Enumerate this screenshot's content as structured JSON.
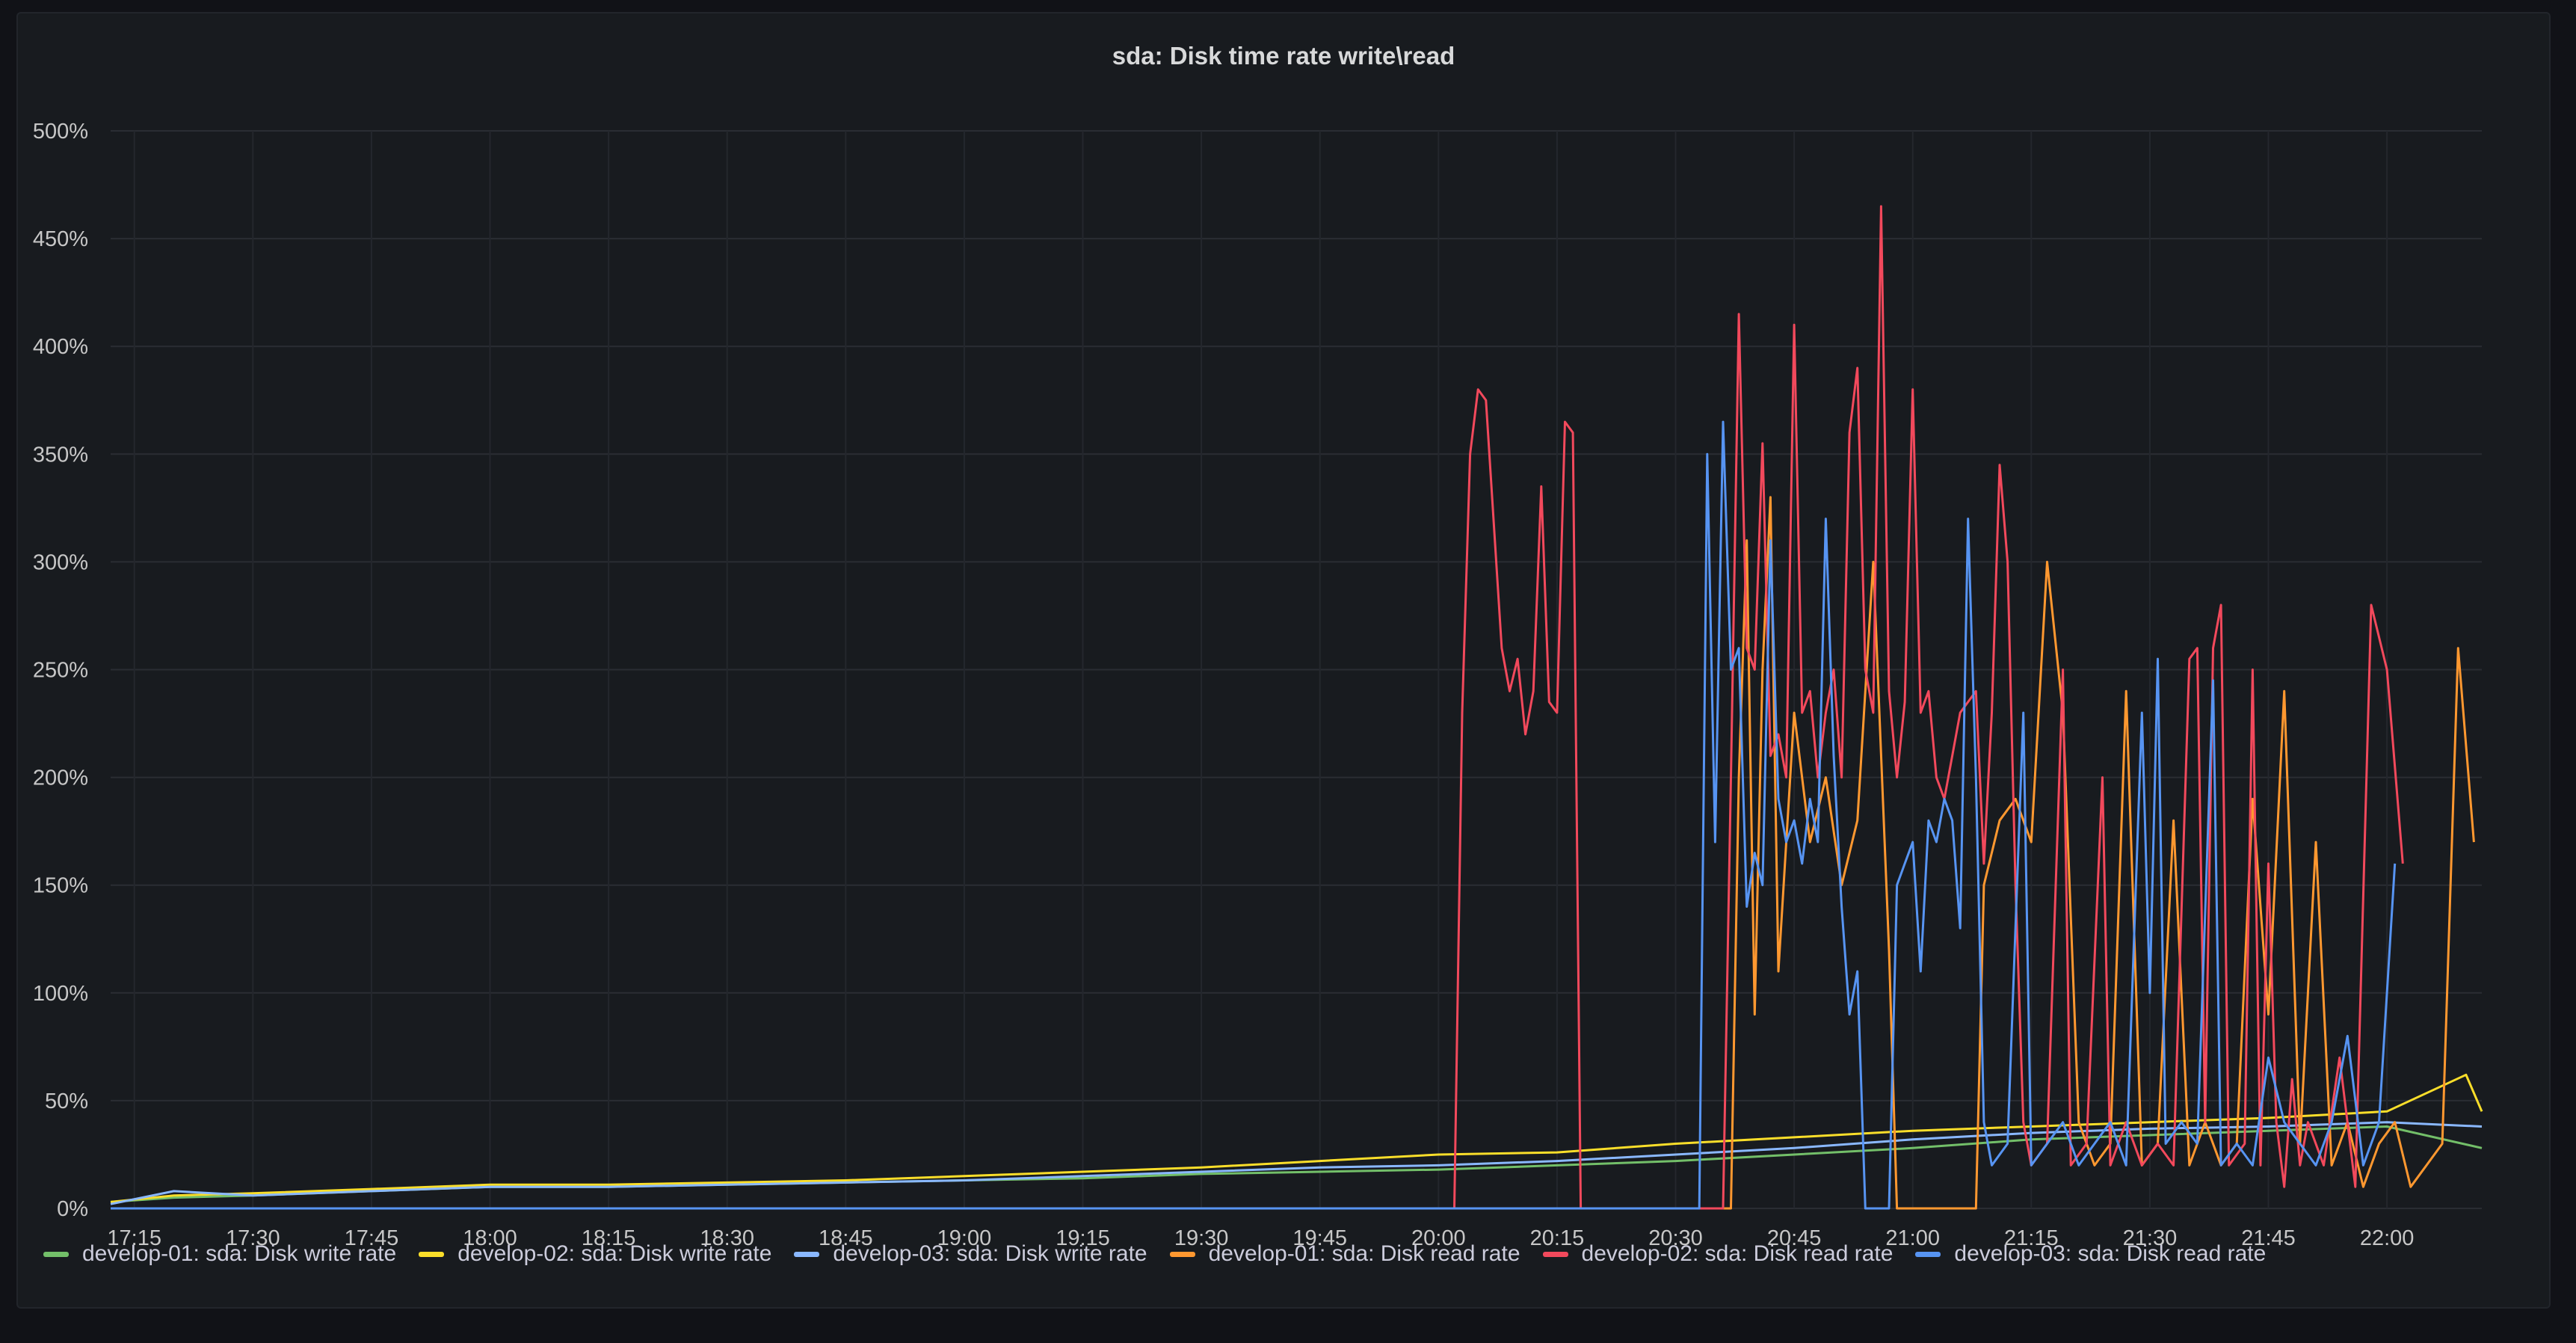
{
  "panel": {
    "title": "sda: Disk time rate write\\read"
  },
  "chart_data": {
    "type": "line",
    "title": "sda: Disk time rate write\\read",
    "x_tick_labels": [
      "17:15",
      "17:30",
      "17:45",
      "18:00",
      "18:15",
      "18:30",
      "18:45",
      "19:00",
      "19:15",
      "19:30",
      "19:45",
      "20:00",
      "20:15",
      "20:30",
      "20:45",
      "21:00",
      "21:15",
      "21:30",
      "21:45",
      "22:00"
    ],
    "x_range": [
      "17:12",
      "22:12"
    ],
    "y_tick_labels": [
      "0%",
      "50%",
      "100%",
      "150%",
      "200%",
      "250%",
      "300%",
      "350%",
      "400%",
      "450%",
      "500%"
    ],
    "ylim": [
      0,
      500
    ],
    "y_unit": "%",
    "grid": true,
    "legend_position": "bottom",
    "series": [
      {
        "name": "develop-01: sda: Disk write rate",
        "color": "#73bf69",
        "points": [
          [
            "17:12",
            3
          ],
          [
            "17:20",
            5
          ],
          [
            "17:30",
            6
          ],
          [
            "17:45",
            8
          ],
          [
            "18:00",
            10
          ],
          [
            "18:15",
            10
          ],
          [
            "18:30",
            11
          ],
          [
            "18:45",
            12
          ],
          [
            "19:00",
            13
          ],
          [
            "19:15",
            14
          ],
          [
            "19:30",
            16
          ],
          [
            "19:45",
            17
          ],
          [
            "20:00",
            18
          ],
          [
            "20:15",
            20
          ],
          [
            "20:30",
            22
          ],
          [
            "20:45",
            25
          ],
          [
            "21:00",
            28
          ],
          [
            "21:15",
            32
          ],
          [
            "21:30",
            34
          ],
          [
            "21:45",
            36
          ],
          [
            "22:00",
            38
          ],
          [
            "22:12",
            28
          ]
        ]
      },
      {
        "name": "develop-02: sda: Disk write rate",
        "color": "#fade2a",
        "points": [
          [
            "17:12",
            3
          ],
          [
            "17:20",
            6
          ],
          [
            "17:30",
            7
          ],
          [
            "17:45",
            9
          ],
          [
            "18:00",
            11
          ],
          [
            "18:15",
            11
          ],
          [
            "18:30",
            12
          ],
          [
            "18:45",
            13
          ],
          [
            "19:00",
            15
          ],
          [
            "19:15",
            17
          ],
          [
            "19:30",
            19
          ],
          [
            "19:45",
            22
          ],
          [
            "20:00",
            25
          ],
          [
            "20:15",
            26
          ],
          [
            "20:30",
            30
          ],
          [
            "20:45",
            33
          ],
          [
            "21:00",
            36
          ],
          [
            "21:15",
            38
          ],
          [
            "21:30",
            40
          ],
          [
            "21:45",
            42
          ],
          [
            "22:00",
            45
          ],
          [
            "22:10",
            62
          ],
          [
            "22:12",
            45
          ]
        ]
      },
      {
        "name": "develop-03: sda: Disk write rate",
        "color": "#8ab8ff",
        "points": [
          [
            "17:12",
            2
          ],
          [
            "17:20",
            8
          ],
          [
            "17:30",
            6
          ],
          [
            "17:45",
            8
          ],
          [
            "18:00",
            10
          ],
          [
            "18:15",
            10
          ],
          [
            "18:30",
            11
          ],
          [
            "18:45",
            12
          ],
          [
            "19:00",
            13
          ],
          [
            "19:15",
            15
          ],
          [
            "19:30",
            17
          ],
          [
            "19:45",
            19
          ],
          [
            "20:00",
            20
          ],
          [
            "20:15",
            22
          ],
          [
            "20:30",
            25
          ],
          [
            "20:45",
            28
          ],
          [
            "21:00",
            32
          ],
          [
            "21:15",
            35
          ],
          [
            "21:30",
            37
          ],
          [
            "21:45",
            38
          ],
          [
            "22:00",
            40
          ],
          [
            "22:12",
            38
          ]
        ]
      },
      {
        "name": "develop-01: sda: Disk read rate",
        "color": "#ff9830",
        "points": [
          [
            "17:12",
            0
          ],
          [
            "20:37",
            0
          ],
          [
            "20:38",
            200
          ],
          [
            "20:39",
            310
          ],
          [
            "20:40",
            90
          ],
          [
            "20:41",
            250
          ],
          [
            "20:42",
            330
          ],
          [
            "20:43",
            110
          ],
          [
            "20:45",
            230
          ],
          [
            "20:47",
            170
          ],
          [
            "20:49",
            200
          ],
          [
            "20:51",
            150
          ],
          [
            "20:53",
            180
          ],
          [
            "20:55",
            300
          ],
          [
            "20:57",
            120
          ],
          [
            "20:58",
            0
          ],
          [
            "21:08",
            0
          ],
          [
            "21:09",
            150
          ],
          [
            "21:11",
            180
          ],
          [
            "21:13",
            190
          ],
          [
            "21:15",
            170
          ],
          [
            "21:17",
            300
          ],
          [
            "21:19",
            230
          ],
          [
            "21:21",
            40
          ],
          [
            "21:23",
            20
          ],
          [
            "21:25",
            30
          ],
          [
            "21:27",
            240
          ],
          [
            "21:29",
            20
          ],
          [
            "21:31",
            30
          ],
          [
            "21:33",
            180
          ],
          [
            "21:35",
            20
          ],
          [
            "21:37",
            40
          ],
          [
            "21:39",
            20
          ],
          [
            "21:41",
            30
          ],
          [
            "21:43",
            190
          ],
          [
            "21:45",
            90
          ],
          [
            "21:47",
            240
          ],
          [
            "21:49",
            30
          ],
          [
            "21:51",
            170
          ],
          [
            "21:53",
            20
          ],
          [
            "21:55",
            40
          ],
          [
            "21:57",
            10
          ],
          [
            "21:59",
            30
          ],
          [
            "22:01",
            40
          ],
          [
            "22:03",
            10
          ],
          [
            "22:05",
            20
          ],
          [
            "22:07",
            30
          ],
          [
            "22:09",
            260
          ],
          [
            "22:11",
            170
          ]
        ]
      },
      {
        "name": "develop-02: sda: Disk read rate",
        "color": "#f2495c",
        "points": [
          [
            "17:12",
            0
          ],
          [
            "20:02",
            0
          ],
          [
            "20:03",
            230
          ],
          [
            "20:04",
            350
          ],
          [
            "20:05",
            380
          ],
          [
            "20:06",
            375
          ],
          [
            "20:08",
            260
          ],
          [
            "20:09",
            240
          ],
          [
            "20:10",
            255
          ],
          [
            "20:11",
            220
          ],
          [
            "20:12",
            240
          ],
          [
            "20:13",
            335
          ],
          [
            "20:14",
            235
          ],
          [
            "20:15",
            230
          ],
          [
            "20:16",
            365
          ],
          [
            "20:17",
            360
          ],
          [
            "20:18",
            0
          ],
          [
            "20:36",
            0
          ],
          [
            "20:37",
            200
          ],
          [
            "20:38",
            415
          ],
          [
            "20:39",
            260
          ],
          [
            "20:40",
            250
          ],
          [
            "20:41",
            355
          ],
          [
            "20:42",
            210
          ],
          [
            "20:43",
            220
          ],
          [
            "20:44",
            200
          ],
          [
            "20:45",
            410
          ],
          [
            "20:46",
            230
          ],
          [
            "20:47",
            240
          ],
          [
            "20:48",
            200
          ],
          [
            "20:49",
            230
          ],
          [
            "20:50",
            250
          ],
          [
            "20:51",
            200
          ],
          [
            "20:52",
            360
          ],
          [
            "20:53",
            390
          ],
          [
            "20:54",
            250
          ],
          [
            "20:55",
            230
          ],
          [
            "20:56",
            465
          ],
          [
            "20:57",
            240
          ],
          [
            "20:58",
            200
          ],
          [
            "20:59",
            235
          ],
          [
            "21:00",
            380
          ],
          [
            "21:01",
            230
          ],
          [
            "21:02",
            240
          ],
          [
            "21:03",
            200
          ],
          [
            "21:04",
            190
          ],
          [
            "21:05",
            210
          ],
          [
            "21:06",
            230
          ],
          [
            "21:07",
            235
          ],
          [
            "21:08",
            240
          ],
          [
            "21:09",
            160
          ],
          [
            "21:10",
            230
          ],
          [
            "21:11",
            345
          ],
          [
            "21:12",
            300
          ],
          [
            "21:13",
            150
          ],
          [
            "21:14",
            40
          ],
          [
            "21:15",
            20
          ],
          [
            "21:17",
            30
          ],
          [
            "21:19",
            250
          ],
          [
            "21:20",
            20
          ],
          [
            "21:22",
            30
          ],
          [
            "21:24",
            200
          ],
          [
            "21:25",
            20
          ],
          [
            "21:27",
            40
          ],
          [
            "21:29",
            20
          ],
          [
            "21:31",
            30
          ],
          [
            "21:33",
            20
          ],
          [
            "21:35",
            255
          ],
          [
            "21:36",
            260
          ],
          [
            "21:37",
            40
          ],
          [
            "21:38",
            260
          ],
          [
            "21:39",
            280
          ],
          [
            "21:40",
            20
          ],
          [
            "21:42",
            30
          ],
          [
            "21:43",
            250
          ],
          [
            "21:44",
            20
          ],
          [
            "21:45",
            160
          ],
          [
            "21:46",
            40
          ],
          [
            "21:47",
            10
          ],
          [
            "21:48",
            60
          ],
          [
            "21:49",
            20
          ],
          [
            "21:50",
            40
          ],
          [
            "21:52",
            20
          ],
          [
            "21:54",
            70
          ],
          [
            "21:56",
            10
          ],
          [
            "21:58",
            280
          ],
          [
            "22:00",
            250
          ],
          [
            "22:02",
            160
          ]
        ]
      },
      {
        "name": "develop-03: sda: Disk read rate",
        "color": "#5794f2",
        "points": [
          [
            "17:12",
            0
          ],
          [
            "20:33",
            0
          ],
          [
            "20:34",
            350
          ],
          [
            "20:35",
            170
          ],
          [
            "20:36",
            365
          ],
          [
            "20:37",
            250
          ],
          [
            "20:38",
            260
          ],
          [
            "20:39",
            140
          ],
          [
            "20:40",
            165
          ],
          [
            "20:41",
            150
          ],
          [
            "20:42",
            310
          ],
          [
            "20:43",
            190
          ],
          [
            "20:44",
            170
          ],
          [
            "20:45",
            180
          ],
          [
            "20:46",
            160
          ],
          [
            "20:47",
            190
          ],
          [
            "20:48",
            170
          ],
          [
            "20:49",
            320
          ],
          [
            "20:50",
            210
          ],
          [
            "20:51",
            140
          ],
          [
            "20:52",
            90
          ],
          [
            "20:53",
            110
          ],
          [
            "20:54",
            0
          ],
          [
            "20:57",
            0
          ],
          [
            "20:58",
            150
          ],
          [
            "20:59",
            160
          ],
          [
            "21:00",
            170
          ],
          [
            "21:01",
            110
          ],
          [
            "21:02",
            180
          ],
          [
            "21:03",
            170
          ],
          [
            "21:04",
            190
          ],
          [
            "21:05",
            180
          ],
          [
            "21:06",
            130
          ],
          [
            "21:07",
            320
          ],
          [
            "21:08",
            200
          ],
          [
            "21:09",
            40
          ],
          [
            "21:10",
            20
          ],
          [
            "21:12",
            30
          ],
          [
            "21:14",
            230
          ],
          [
            "21:15",
            20
          ],
          [
            "21:17",
            30
          ],
          [
            "21:19",
            40
          ],
          [
            "21:21",
            20
          ],
          [
            "21:23",
            30
          ],
          [
            "21:25",
            40
          ],
          [
            "21:27",
            20
          ],
          [
            "21:29",
            230
          ],
          [
            "21:30",
            100
          ],
          [
            "21:31",
            255
          ],
          [
            "21:32",
            30
          ],
          [
            "21:34",
            40
          ],
          [
            "21:36",
            30
          ],
          [
            "21:38",
            245
          ],
          [
            "21:39",
            20
          ],
          [
            "21:41",
            30
          ],
          [
            "21:43",
            20
          ],
          [
            "21:45",
            70
          ],
          [
            "21:47",
            40
          ],
          [
            "21:49",
            30
          ],
          [
            "21:51",
            20
          ],
          [
            "21:53",
            40
          ],
          [
            "21:55",
            80
          ],
          [
            "21:57",
            20
          ],
          [
            "21:59",
            40
          ],
          [
            "22:01",
            160
          ]
        ]
      }
    ]
  }
}
